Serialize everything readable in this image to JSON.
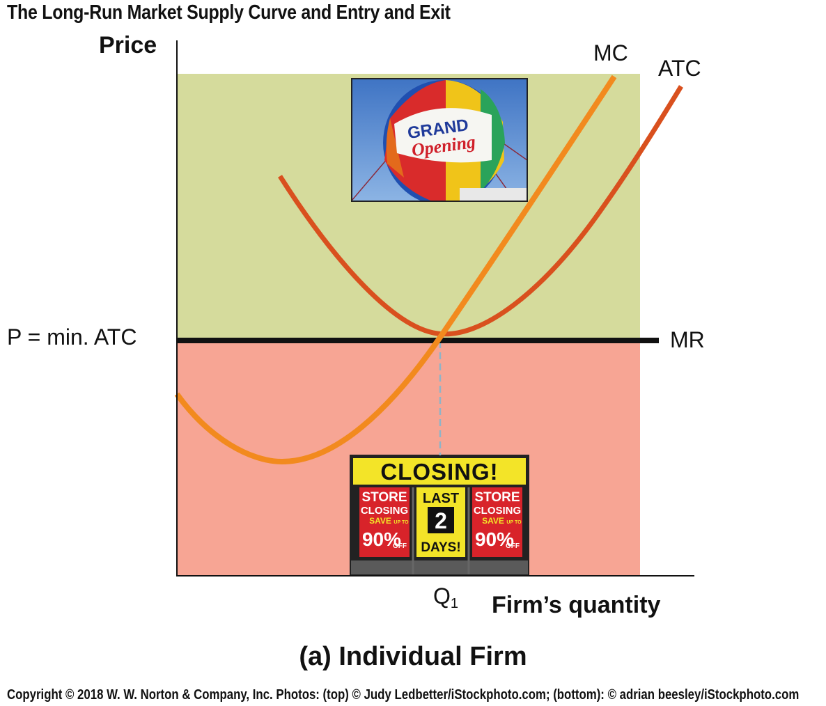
{
  "title": "The Long-Run Market Supply Curve and Entry and Exit",
  "axes": {
    "y_label": "Price",
    "x_label": "Firm’s quantity",
    "price_level_label": "P = min. ATC",
    "quantity_label": "Q",
    "quantity_subscript": "1"
  },
  "curves": {
    "mc_label": "MC",
    "atc_label": "ATC",
    "mr_label": "MR"
  },
  "regions": {
    "upper_color": "#d5db9c",
    "lower_color": "#f7a594"
  },
  "colors": {
    "mc": "#f28a1e",
    "atc": "#d9501e",
    "mr": "#111111",
    "q_guide": "#8fb4c8"
  },
  "photos": {
    "top": {
      "balloon_word_1": "GRAND",
      "balloon_word_2": "Opening"
    },
    "bottom": {
      "banner": "CLOSING!",
      "left_sign": [
        "STORE",
        "CLOSING",
        "SAVE",
        "UP TO",
        "90%",
        "OFF"
      ],
      "middle_sign": [
        "LAST",
        "2",
        "DAYS!"
      ],
      "right_sign": [
        "STORE",
        "CLOSING",
        "SAVE",
        "UP TO",
        "90%",
        "OFF"
      ]
    }
  },
  "subtitle": "(a) Individual Firm",
  "copyright": "Copyright © 2018 W. W. Norton & Company, Inc. Photos: (top) © Judy Ledbetter/iStockphoto.com; (bottom): © adrian beesley/iStockphoto.com"
}
